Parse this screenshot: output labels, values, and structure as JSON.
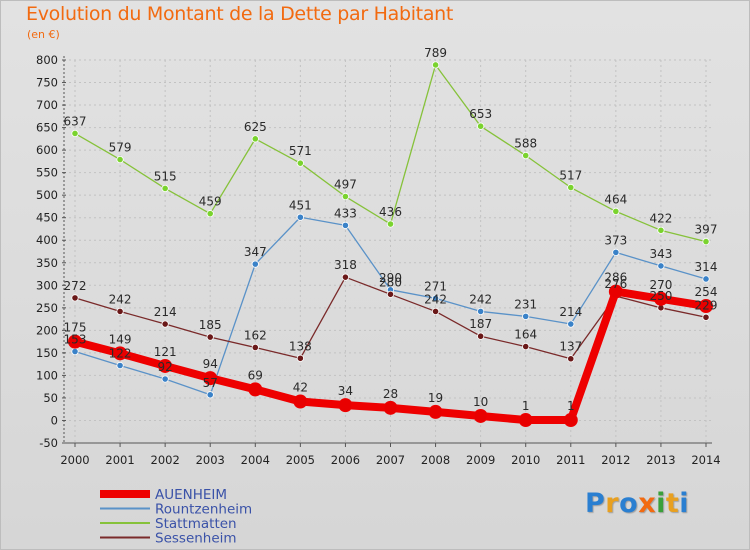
{
  "title": "Evolution du Montant de la Dette par Habitant",
  "unit": "(en €)",
  "logo": "Proxiti",
  "chart_data": {
    "type": "line",
    "x": [
      "2000",
      "2001",
      "2002",
      "2003",
      "2004",
      "2005",
      "2006",
      "2007",
      "2008",
      "2009",
      "2010",
      "2011",
      "2012",
      "2013",
      "2014"
    ],
    "ylim": [
      -50,
      800
    ],
    "yticks": [
      -50,
      0,
      50,
      100,
      150,
      200,
      250,
      300,
      350,
      400,
      450,
      500,
      550,
      600,
      650,
      700,
      750,
      800
    ],
    "grid": true,
    "legend_position": "bottom-left",
    "series": [
      {
        "name": "Stattmatten",
        "color": "#86c23a",
        "point_color": "#7ad32e",
        "width": 1.3,
        "values": [
          637,
          579,
          515,
          459,
          625,
          571,
          497,
          436,
          789,
          653,
          588,
          517,
          464,
          422,
          397
        ]
      },
      {
        "name": "Rountzenheim",
        "color": "#5a92c8",
        "point_color": "#3a82c8",
        "width": 1.3,
        "values": [
          153,
          122,
          92,
          57,
          347,
          451,
          433,
          290,
          271,
          242,
          231,
          214,
          373,
          343,
          314
        ]
      },
      {
        "name": "Sessenheim",
        "color": "#7a2a2a",
        "point_color": "#6a1818",
        "width": 1.3,
        "values": [
          272,
          242,
          214,
          185,
          162,
          138,
          318,
          280,
          242,
          187,
          164,
          137,
          276,
          250,
          229
        ]
      },
      {
        "name": "AUENHEIM",
        "color": "#ee0000",
        "point_color": "#e80000",
        "width": 8,
        "values": [
          175,
          149,
          121,
          94,
          69,
          42,
          34,
          28,
          19,
          10,
          1,
          1,
          286,
          270,
          254
        ]
      }
    ]
  }
}
